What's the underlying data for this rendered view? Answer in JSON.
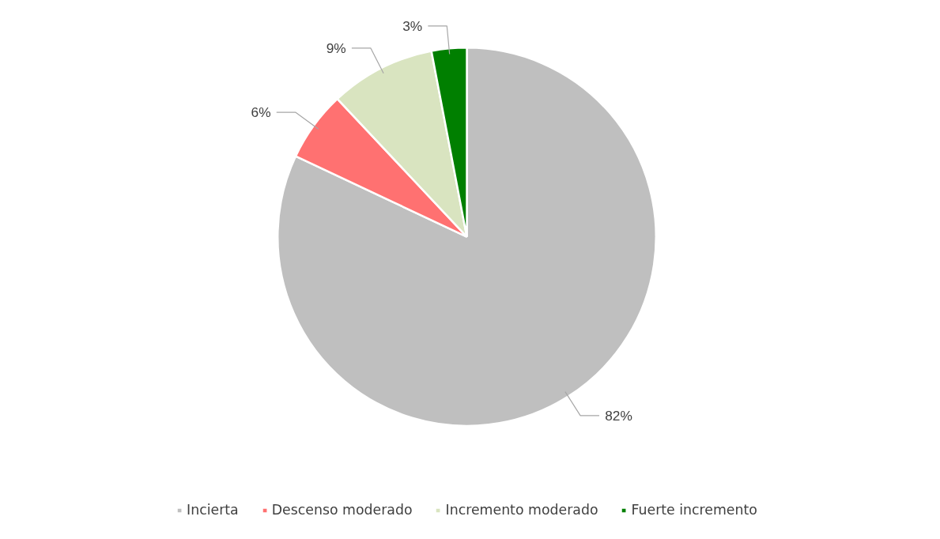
{
  "chart_data": {
    "type": "pie",
    "categories": [
      "Incierta",
      "Descenso moderado",
      "Incremento moderado",
      "Fuerte incremento"
    ],
    "values": [
      82,
      6,
      9,
      3
    ],
    "colors": [
      "#bfbfbf",
      "#ff7171",
      "#d9e4c0",
      "#007f00"
    ],
    "value_labels": [
      "82%",
      "6%",
      "9%",
      "3%"
    ],
    "legend": "bottom"
  }
}
